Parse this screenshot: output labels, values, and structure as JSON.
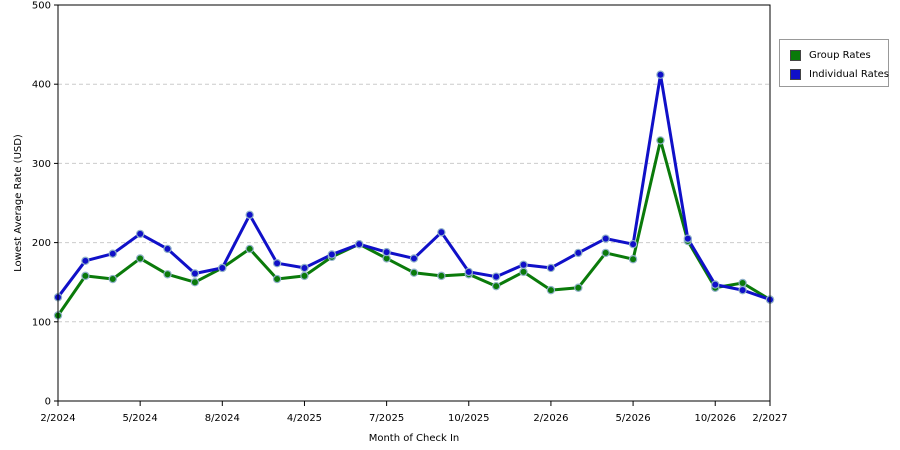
{
  "chart_data": {
    "type": "line",
    "xlabel": "Month of Check In",
    "ylabel": "Lowest Average Rate (USD)",
    "ylim": [
      0,
      500
    ],
    "yticks": [
      0,
      100,
      200,
      300,
      400,
      500
    ],
    "grid": "horizontal dashed",
    "legend_position": "right",
    "xtick_labels": [
      {
        "index": 0,
        "label": "2/2024"
      },
      {
        "index": 3,
        "label": "5/2024"
      },
      {
        "index": 6,
        "label": "8/2024"
      },
      {
        "index": 9,
        "label": "4/2025"
      },
      {
        "index": 12,
        "label": "7/2025"
      },
      {
        "index": 15,
        "label": "10/2025"
      },
      {
        "index": 18,
        "label": "2/2026"
      },
      {
        "index": 21,
        "label": "5/2026"
      },
      {
        "index": 24,
        "label": "10/2026"
      },
      {
        "index": 26,
        "label": "2/2027"
      }
    ],
    "series": [
      {
        "name": "Group Rates",
        "color": "#0a7a0a",
        "values": [
          108,
          158,
          154,
          180,
          160,
          150,
          168,
          192,
          154,
          158,
          182,
          198,
          180,
          162,
          158,
          160,
          145,
          163,
          140,
          143,
          187,
          179,
          329,
          202,
          143,
          149,
          128
        ]
      },
      {
        "name": "Individual Rates",
        "color": "#1010c8",
        "values": [
          131,
          177,
          186,
          211,
          192,
          161,
          168,
          235,
          174,
          168,
          185,
          198,
          188,
          180,
          213,
          163,
          157,
          172,
          168,
          187,
          205,
          198,
          412,
          205,
          147,
          140,
          128
        ]
      }
    ]
  }
}
